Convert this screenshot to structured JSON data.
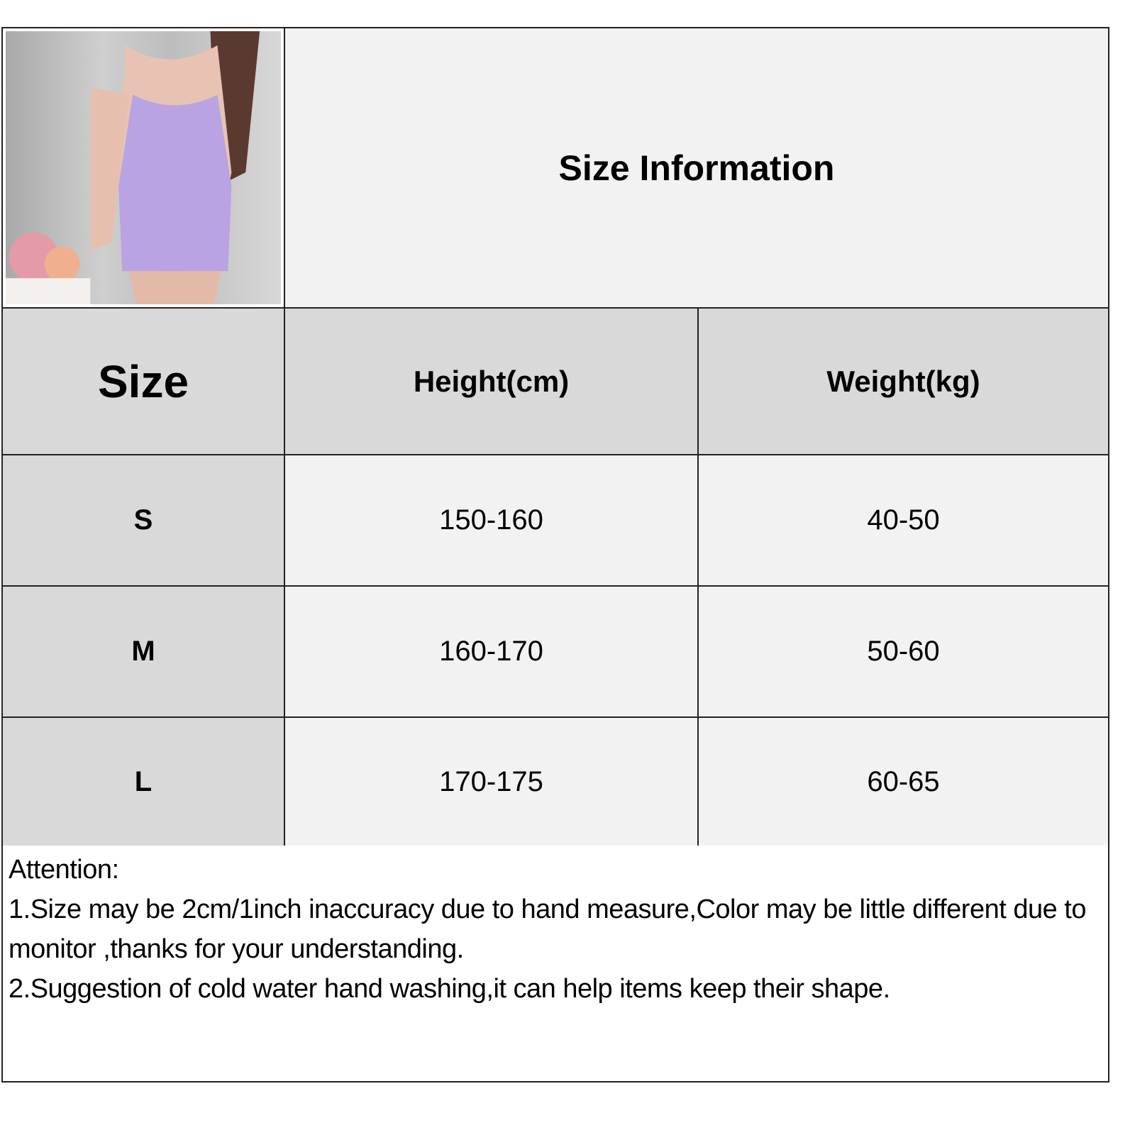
{
  "title": "Size Information",
  "product_image": {
    "alt": "model wearing lavender halter bodycon mini dress",
    "dress_color": "#b9a3e3"
  },
  "table": {
    "headers": [
      "Size",
      "Height(cm)",
      "Weight(kg)"
    ],
    "rows": [
      {
        "size": "S",
        "height": "150-160",
        "weight": "40-50"
      },
      {
        "size": "M",
        "height": "160-170",
        "weight": "50-60"
      },
      {
        "size": "L",
        "height": "170-175",
        "weight": "60-65"
      }
    ]
  },
  "notes": {
    "heading": "Attention:",
    "items": [
      "1.Size may be 2cm/1inch inaccuracy due to hand measure,Color may be little different due to monitor ,thanks for your understanding.",
      "2.Suggestion of cold water hand washing,it can help items keep their shape."
    ]
  },
  "colors": {
    "header_bg": "#d9d9d9",
    "cell_bg": "#f2f2f2",
    "border": "#222222"
  }
}
